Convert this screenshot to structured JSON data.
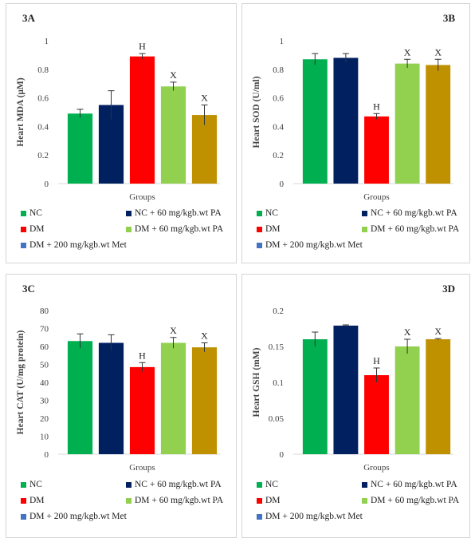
{
  "colors": {
    "series": [
      "#00b050",
      "#002060",
      "#ff0000",
      "#92d050",
      "#bf9000",
      "#4472c4"
    ],
    "error_bar": "#333333",
    "axis_text": "#404040"
  },
  "legend": [
    "NC",
    "NC + 60 mg/kgb.wt PA",
    "DM",
    "DM + 60 mg/kgb.wt PA",
    "DM + 200 mg/kgb.wt Met"
  ],
  "chart_data": [
    {
      "panel_label": "3A",
      "type": "bar",
      "ylabel": "Heart MDA (µM)",
      "xlabel": "Groups",
      "ylim": [
        0,
        1
      ],
      "yticks": [
        "0",
        "0.2",
        "0.4",
        "0.6",
        "0.8",
        "1"
      ],
      "series": [
        "NC",
        "NC + 60 mg/kgb.wt PA",
        "DM",
        "DM + 60 mg/kgb.wt PA",
        "DM + 200 mg/kgb.wt Met"
      ],
      "values": [
        0.49,
        0.55,
        0.89,
        0.68,
        0.48
      ],
      "errors": [
        0.03,
        0.1,
        0.02,
        0.03,
        0.07
      ],
      "annotations": [
        "",
        "",
        "H",
        "X",
        "X"
      ]
    },
    {
      "panel_label": "3B",
      "type": "bar",
      "ylabel": "Heart SOD (U/ml)",
      "xlabel": "Groups",
      "ylim": [
        0,
        1
      ],
      "yticks": [
        "0",
        "0.2",
        "0.4",
        "0.6",
        "0.8",
        "1"
      ],
      "series": [
        "NC",
        "NC + 60 mg/kgb.wt PA",
        "DM",
        "DM + 60 mg/kgb.wt PA",
        "DM + 200 mg/kgb.wt Met"
      ],
      "values": [
        0.87,
        0.88,
        0.47,
        0.84,
        0.83
      ],
      "errors": [
        0.04,
        0.03,
        0.02,
        0.03,
        0.04
      ],
      "annotations": [
        "",
        "",
        "H",
        "X",
        "X"
      ]
    },
    {
      "panel_label": "3C",
      "type": "bar",
      "ylabel": "Heart CAT (U/mg protein)",
      "xlabel": "Groups",
      "ylim": [
        0,
        80
      ],
      "yticks": [
        "0",
        "10",
        "20",
        "30",
        "40",
        "50",
        "60",
        "70",
        "80"
      ],
      "series": [
        "NC",
        "NC + 60 mg/kgb.wt PA",
        "DM",
        "DM + 60 mg/kgb.wt PA",
        "DM + 200 mg/kgb.wt Met"
      ],
      "values": [
        63,
        62,
        48.5,
        62,
        59.5
      ],
      "errors": [
        4,
        4.5,
        2.5,
        3,
        2.5
      ],
      "annotations": [
        "",
        "",
        "H",
        "X",
        "X"
      ]
    },
    {
      "panel_label": "3D",
      "type": "bar",
      "ylabel": "Heart GSH (mM)",
      "xlabel": "Groups",
      "ylim": [
        0,
        0.2
      ],
      "yticks": [
        "0",
        "0.05",
        "0.1",
        "0.15",
        "0.2"
      ],
      "series": [
        "NC",
        "NC + 60 mg/kgb.wt PA",
        "DM",
        "DM + 60 mg/kgb.wt PA",
        "DM + 200 mg/kgb.wt Met"
      ],
      "values": [
        0.16,
        0.179,
        0.11,
        0.15,
        0.16
      ],
      "errors": [
        0.01,
        0.001,
        0.01,
        0.01,
        0.001
      ],
      "annotations": [
        "",
        "",
        "H",
        "X",
        "X"
      ]
    }
  ]
}
